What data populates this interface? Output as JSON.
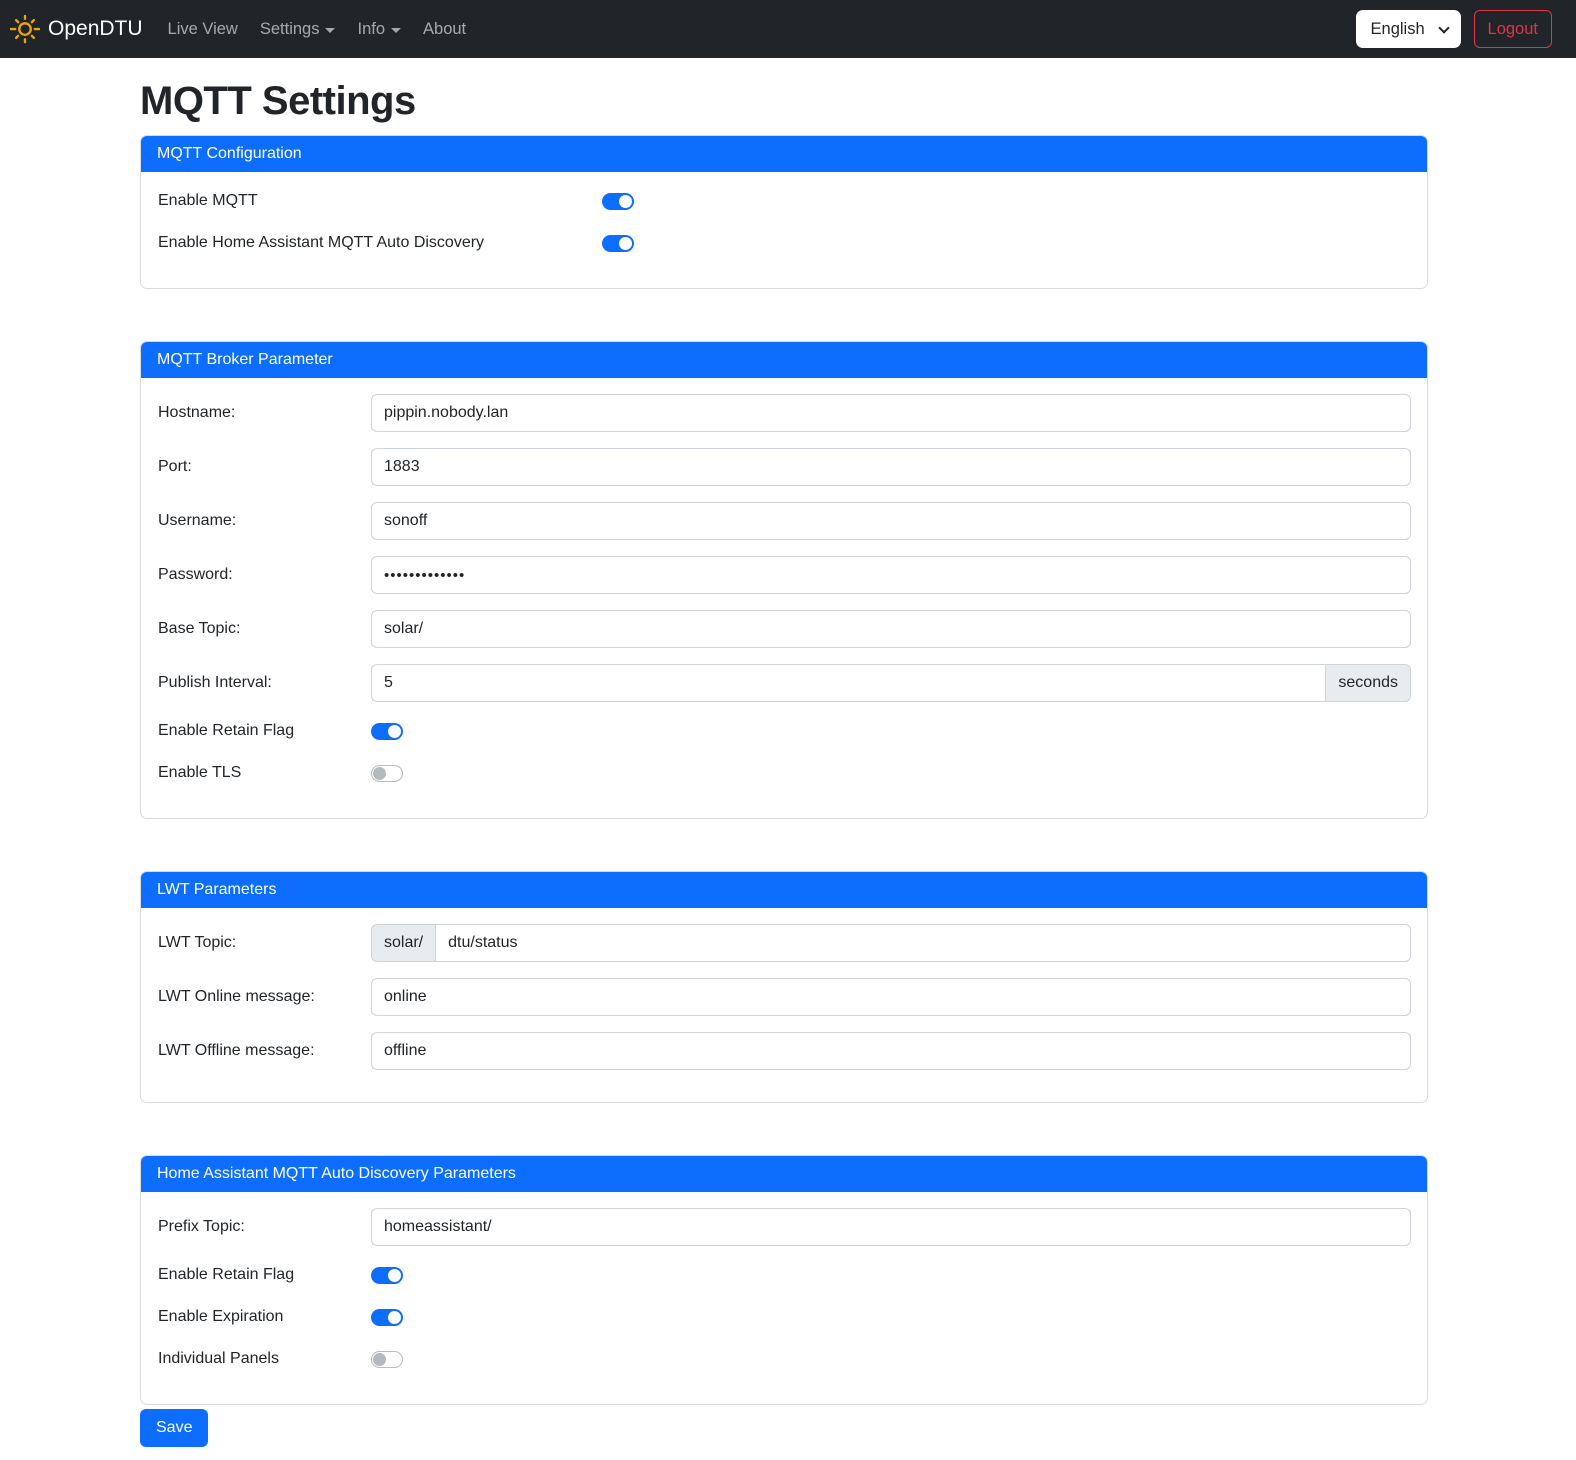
{
  "navbar": {
    "brand": "OpenDTU",
    "items": [
      {
        "label": "Live View",
        "caret": false
      },
      {
        "label": "Settings",
        "caret": true
      },
      {
        "label": "Info",
        "caret": true
      },
      {
        "label": "About",
        "caret": false
      }
    ],
    "language_selected": "English",
    "logout_label": "Logout"
  },
  "page_title": "MQTT Settings",
  "cards": [
    {
      "title": "MQTT Configuration",
      "wide_label": true,
      "rows": [
        {
          "type": "toggle",
          "label": "Enable MQTT",
          "on": true
        },
        {
          "type": "toggle",
          "label": "Enable Home Assistant MQTT Auto Discovery",
          "on": true
        }
      ]
    },
    {
      "title": "MQTT Broker Parameter",
      "wide_label": false,
      "rows": [
        {
          "type": "text",
          "label": "Hostname:",
          "value": "pippin.nobody.lan"
        },
        {
          "type": "text",
          "label": "Port:",
          "value": "1883"
        },
        {
          "type": "text",
          "label": "Username:",
          "value": "sonoff"
        },
        {
          "type": "text",
          "label": "Password:",
          "value": "•••••••••••••",
          "masked": true
        },
        {
          "type": "text",
          "label": "Base Topic:",
          "value": "solar/"
        },
        {
          "type": "text",
          "label": "Publish Interval:",
          "value": "5",
          "suffix": "seconds"
        },
        {
          "type": "toggle",
          "label": "Enable Retain Flag",
          "on": true
        },
        {
          "type": "toggle",
          "label": "Enable TLS",
          "on": false
        }
      ]
    },
    {
      "title": "LWT Parameters",
      "wide_label": false,
      "rows": [
        {
          "type": "text",
          "label": "LWT Topic:",
          "prefix": "solar/",
          "value": "dtu/status"
        },
        {
          "type": "text",
          "label": "LWT Online message:",
          "value": "online"
        },
        {
          "type": "text",
          "label": "LWT Offline message:",
          "value": "offline"
        }
      ]
    },
    {
      "title": "Home Assistant MQTT Auto Discovery Parameters",
      "wide_label": false,
      "rows": [
        {
          "type": "text",
          "label": "Prefix Topic:",
          "value": "homeassistant/"
        },
        {
          "type": "toggle",
          "label": "Enable Retain Flag",
          "on": true
        },
        {
          "type": "toggle",
          "label": "Enable Expiration",
          "on": true
        },
        {
          "type": "toggle",
          "label": "Individual Panels",
          "on": false
        }
      ]
    }
  ],
  "save_label": "Save",
  "colors": {
    "accent": "#0d6efd",
    "danger": "#dc3545",
    "navbar_bg": "#212529",
    "sun": "#eaa50f",
    "addon_bg": "#e9ecef"
  }
}
